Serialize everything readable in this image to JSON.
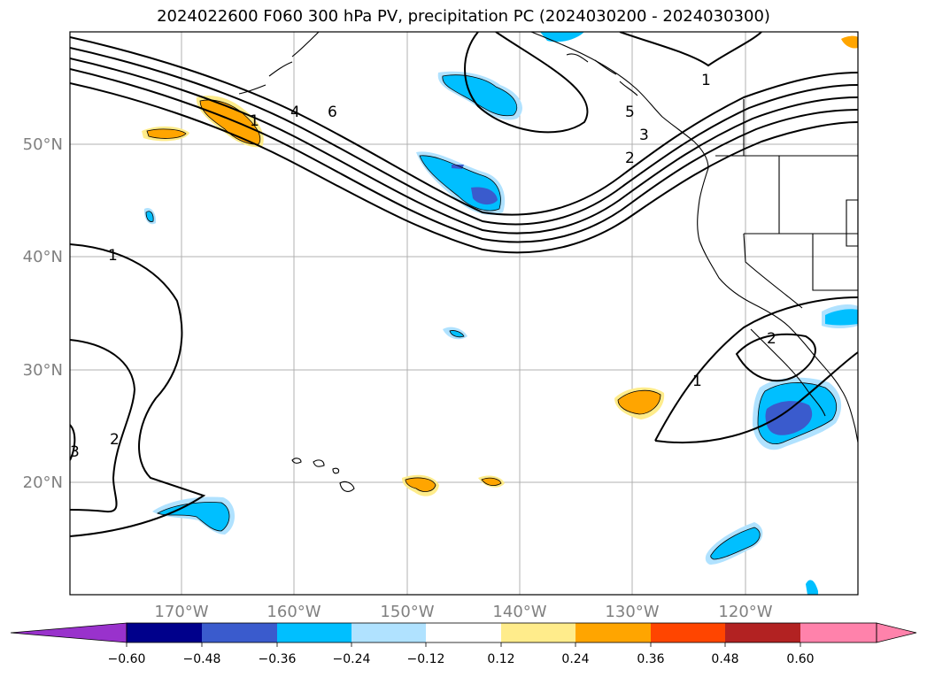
{
  "title": "2024022600 F060 300 hPa PV, precipitation PC (2024030200 - 2024030300)",
  "colors": {
    "land_outline": "#000000",
    "grid": "#b0b0b0",
    "axis_text": "#808080",
    "neg_060_over": "#9932cc",
    "neg_048_060": "#00008b",
    "neg_036_048": "#3a5bcd",
    "neg_024_036": "#00bfff",
    "neg_012_024": "#b0e2ff",
    "neutral": "#ffffff",
    "pos_012_024": "#ffec8b",
    "pos_024_036": "#ffa500",
    "pos_036_048": "#ff4500",
    "pos_048_060": "#b22222",
    "pos_060_over": "#ff82ab"
  },
  "map": {
    "lon_labels": [
      "170°W",
      "160°W",
      "150°W",
      "140°W",
      "130°W",
      "120°W"
    ],
    "lat_labels": [
      "50°N",
      "40°N",
      "30°N",
      "20°N"
    ],
    "pv_contour_labels": [
      "1",
      "2",
      "3",
      "4",
      "5",
      "6",
      "1",
      "2",
      "1",
      "2",
      "1",
      "3"
    ]
  },
  "colorbar": {
    "tick_labels": [
      "−0.60",
      "−0.48",
      "−0.36",
      "−0.24",
      "−0.12",
      "0.12",
      "0.24",
      "0.36",
      "0.48",
      "0.60"
    ]
  }
}
